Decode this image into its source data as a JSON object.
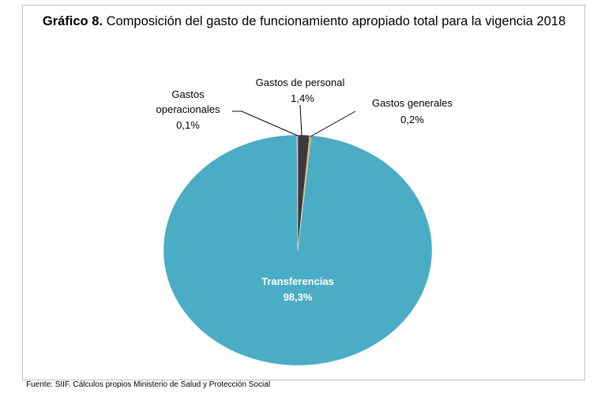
{
  "chart_data": {
    "type": "pie",
    "title": {
      "label": "Gráfico 8.",
      "text": "Composición del gasto de funcionamiento apropiado total para la vigencia  2018"
    },
    "categories": [
      "Gastos de personal",
      "Gastos generales",
      "Transferencias",
      "Gastos operacionales"
    ],
    "values": [
      1.4,
      0.2,
      98.3,
      0.1
    ],
    "value_labels": [
      "1,4%",
      "0,2%",
      "98,3%",
      "0,1%"
    ],
    "colors": [
      "#3a3a3a",
      "#f79646",
      "#4bacc6",
      "#a5a5a5"
    ],
    "source": "Fuente: SIIF. Cálculos propios Ministerio de Salud y Protección Social"
  }
}
